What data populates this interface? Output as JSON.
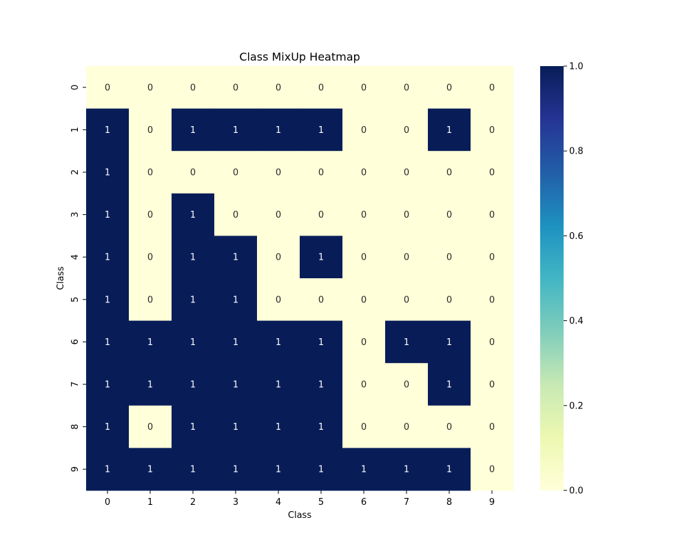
{
  "chart_data": {
    "type": "heatmap",
    "title": "Class MixUp Heatmap",
    "xlabel": "Class",
    "ylabel": "Class",
    "x_categories": [
      "0",
      "1",
      "2",
      "3",
      "4",
      "5",
      "6",
      "7",
      "8",
      "9"
    ],
    "y_categories": [
      "0",
      "1",
      "2",
      "3",
      "4",
      "5",
      "6",
      "7",
      "8",
      "9"
    ],
    "values": [
      [
        0,
        0,
        0,
        0,
        0,
        0,
        0,
        0,
        0,
        0
      ],
      [
        1,
        0,
        1,
        1,
        1,
        1,
        0,
        0,
        1,
        0
      ],
      [
        1,
        0,
        0,
        0,
        0,
        0,
        0,
        0,
        0,
        0
      ],
      [
        1,
        0,
        1,
        0,
        0,
        0,
        0,
        0,
        0,
        0
      ],
      [
        1,
        0,
        1,
        1,
        0,
        1,
        0,
        0,
        0,
        0
      ],
      [
        1,
        0,
        1,
        1,
        0,
        0,
        0,
        0,
        0,
        0
      ],
      [
        1,
        1,
        1,
        1,
        1,
        1,
        0,
        1,
        1,
        0
      ],
      [
        1,
        1,
        1,
        1,
        1,
        1,
        0,
        0,
        1,
        0
      ],
      [
        1,
        0,
        1,
        1,
        1,
        1,
        0,
        0,
        0,
        0
      ],
      [
        1,
        1,
        1,
        1,
        1,
        1,
        1,
        1,
        1,
        0
      ]
    ],
    "colorbar": {
      "range": [
        0,
        1
      ],
      "ticks": [
        "0.0",
        "0.2",
        "0.4",
        "0.6",
        "0.8",
        "1.0"
      ],
      "colormap": "YlGnBu",
      "low_color": "#ffffd9",
      "high_color": "#081d58"
    },
    "annotations": true,
    "grid": false
  }
}
